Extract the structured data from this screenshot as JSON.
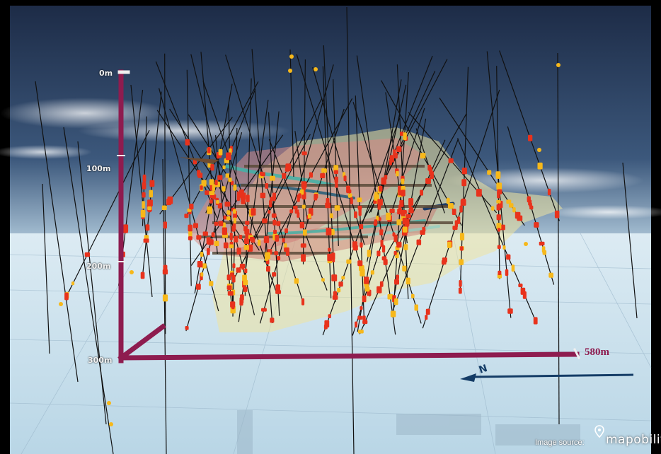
{
  "scale": {
    "depth_labels": [
      "0m",
      "100m",
      "200m",
      "300m"
    ],
    "length_label": "580m"
  },
  "north_arrow": {
    "label": "N"
  },
  "credit": {
    "prefix": "Image source:",
    "brand": "mapobility"
  },
  "colors": {
    "scale_bar": "#8e1c4f",
    "drill_intercept": "#e8321c",
    "intercept_highlight": "#f7b81a",
    "ore_shell_pink": "#d98a85",
    "ore_shell_yellow": "#efe3a0",
    "vein_teal": "#3fb3a8"
  }
}
